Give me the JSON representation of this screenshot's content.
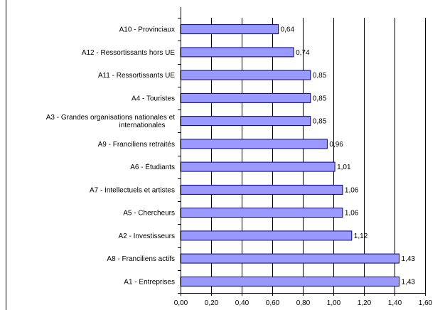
{
  "chart_data": {
    "type": "bar",
    "orientation": "horizontal",
    "title": "",
    "xlabel": "",
    "ylabel": "",
    "xlim": [
      0,
      1.6
    ],
    "xticks": [
      0,
      0.2,
      0.4,
      0.6,
      0.8,
      1.0,
      1.2,
      1.4,
      1.6
    ],
    "xtick_labels": [
      "0,00",
      "0,20",
      "0,40",
      "0,60",
      "0,80",
      "1,00",
      "1,20",
      "1,40",
      "1,60"
    ],
    "grid": "vertical",
    "legend": "none",
    "categories": [
      "A10 - Provinciaux",
      "A12 - Ressortissants hors UE",
      "A11 - Ressortissants UE",
      "A4 - Touristes",
      "A3 - Grandes organisations nationales et internationales",
      "A9 - Franciliens retraités",
      "A6 - Étudiants",
      "A7 - Intellectuels et artistes",
      "A5 - Chercheurs",
      "A2 - Investisseurs",
      "A8 - Franciliens actifs",
      "A1 - Entreprises"
    ],
    "category_label_lines": [
      [
        "A10 - Provinciaux"
      ],
      [
        "A12 - Ressortissants hors UE"
      ],
      [
        "A11 - Ressortissants UE"
      ],
      [
        "A4 - Touristes"
      ],
      [
        "A3 - Grandes organisations nationales et",
        "internationales"
      ],
      [
        "A9 - Franciliens retraités"
      ],
      [
        "A6 - Étudiants"
      ],
      [
        "A7 - Intellectuels et artistes"
      ],
      [
        "A5 - Chercheurs"
      ],
      [
        "A2 - Investisseurs"
      ],
      [
        "A8 - Franciliens actifs"
      ],
      [
        "A1 - Entreprises"
      ]
    ],
    "values": [
      0.64,
      0.74,
      0.85,
      0.85,
      0.85,
      0.96,
      1.01,
      1.06,
      1.06,
      1.12,
      1.43,
      1.43
    ],
    "value_labels": [
      "0,64",
      "0,74",
      "0,85",
      "0,85",
      "0,85",
      "0,96",
      "1,01",
      "1,06",
      "1,06",
      "1,12",
      "1,43",
      "1,43"
    ],
    "colors": {
      "bar_fill": "#9999ff",
      "bar_stroke": "#000080",
      "grid": "#000000"
    }
  }
}
